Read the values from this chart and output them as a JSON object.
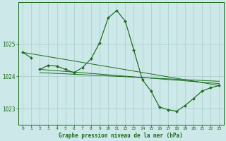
{
  "title": "Graphe pression niveau de la mer (hPa)",
  "bg_color": "#cce8e8",
  "grid_color": "#aacccc",
  "line_color": "#1a6b1a",
  "xlim": [
    -0.5,
    23.5
  ],
  "ylim": [
    1022.5,
    1026.3
  ],
  "yticks": [
    1023,
    1024,
    1025
  ],
  "xticks": [
    0,
    1,
    2,
    3,
    4,
    5,
    6,
    7,
    8,
    9,
    10,
    11,
    12,
    13,
    14,
    15,
    16,
    17,
    18,
    19,
    20,
    21,
    22,
    23
  ],
  "line_main": {
    "x": [
      0,
      1,
      2,
      3,
      4,
      5,
      6,
      7,
      8,
      9,
      10,
      11,
      12,
      13,
      14,
      15,
      16,
      17,
      18,
      19,
      20,
      21,
      22,
      23
    ],
    "y": [
      1024.75,
      1024.58,
      1024.22,
      1024.35,
      1024.32,
      1024.22,
      1024.12,
      1024.28,
      1024.55,
      1025.05,
      1025.82,
      1026.05,
      1025.72,
      1024.82,
      1023.9,
      1023.55,
      1023.05,
      1022.97,
      1022.92,
      1023.1,
      1023.32,
      1023.55,
      1023.65,
      1023.72
    ]
  },
  "line_short": {
    "x": [
      0,
      1
    ],
    "y": [
      1024.75,
      1024.58
    ]
  },
  "trend_lines": [
    {
      "x": [
        0,
        23
      ],
      "y": [
        1024.75,
        1023.72
      ]
    },
    {
      "x": [
        2,
        23
      ],
      "y": [
        1024.22,
        1023.78
      ]
    },
    {
      "x": [
        2,
        23
      ],
      "y": [
        1024.12,
        1023.85
      ]
    }
  ]
}
